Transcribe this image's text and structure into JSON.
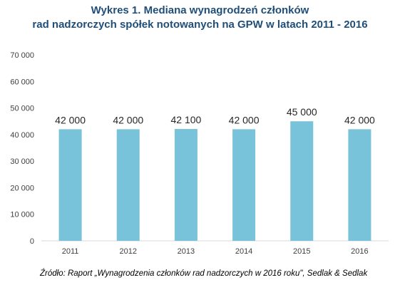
{
  "chart_data": {
    "type": "bar",
    "title": "Wykres 1. Mediana wynagrodzeń członków",
    "subtitle": "rad nadzorczych spółek notowanych na GPW w latach 2011 - 2016",
    "categories": [
      "2011",
      "2012",
      "2013",
      "2014",
      "2015",
      "2016"
    ],
    "values": [
      42000,
      42000,
      42100,
      42000,
      45000,
      42000
    ],
    "value_labels": [
      "42 000",
      "42 000",
      "42 100",
      "42 000",
      "45 000",
      "42 000"
    ],
    "yticks": [
      0,
      10000,
      20000,
      30000,
      40000,
      50000,
      60000,
      70000
    ],
    "ytick_labels": [
      "0",
      "10 000",
      "20 000",
      "30 000",
      "40 000",
      "50 000",
      "60 000",
      "70 000"
    ],
    "ylim": [
      0,
      70000
    ],
    "xlabel": "",
    "ylabel": "",
    "grid": false,
    "bar_color": "#78c3d9"
  },
  "source": "Źródło: Raport „Wynagrodzenia członków rad nadzorczych w 2016 roku\", Sedlak & Sedlak"
}
